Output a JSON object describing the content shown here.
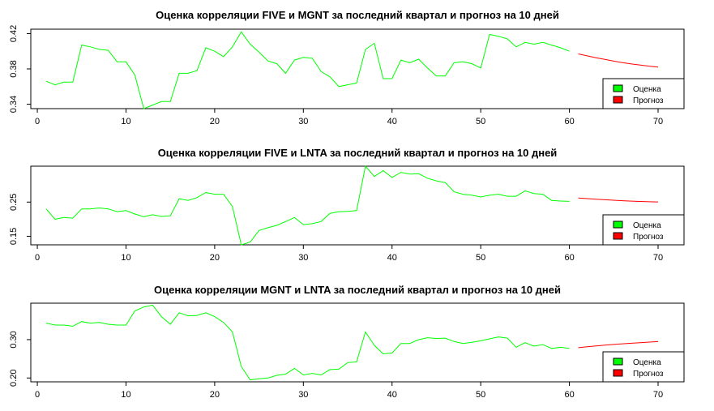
{
  "colors": {
    "estimate": "#00ff00",
    "forecast": "#ff0000",
    "axis": "#000000"
  },
  "legend": {
    "estimate_label": "Оценка",
    "forecast_label": "Прогноз",
    "placement": "bottom-right"
  },
  "chart_data": [
    {
      "type": "line",
      "title": "Оценка корреляции FIVE и MGNT за последний квартал и прогноз на 10 дней",
      "xlabel": "",
      "ylabel": "",
      "xlim": [
        1,
        70
      ],
      "ylim": [
        0.335,
        0.425
      ],
      "xticks": [
        0,
        10,
        20,
        30,
        40,
        50,
        60,
        70
      ],
      "yticks": [
        0.34,
        0.38,
        0.42
      ],
      "series": [
        {
          "name": "Оценка",
          "x_start": 1,
          "values": [
            0.366,
            0.362,
            0.365,
            0.365,
            0.407,
            0.405,
            0.402,
            0.401,
            0.388,
            0.388,
            0.373,
            0.335,
            0.339,
            0.343,
            0.343,
            0.375,
            0.375,
            0.378,
            0.404,
            0.4,
            0.394,
            0.405,
            0.422,
            0.408,
            0.399,
            0.389,
            0.386,
            0.375,
            0.39,
            0.393,
            0.392,
            0.377,
            0.371,
            0.36,
            0.362,
            0.364,
            0.402,
            0.409,
            0.369,
            0.369,
            0.39,
            0.387,
            0.391,
            0.381,
            0.372,
            0.372,
            0.387,
            0.388,
            0.386,
            0.381,
            0.419,
            0.417,
            0.414,
            0.405,
            0.41,
            0.408,
            0.41,
            0.407,
            0.404,
            0.4
          ]
        },
        {
          "name": "Прогноз",
          "x_start": 61,
          "values": [
            0.397,
            0.3948,
            0.3927,
            0.3907,
            0.3888,
            0.3871,
            0.3856,
            0.3843,
            0.3831,
            0.382
          ]
        }
      ]
    },
    {
      "type": "line",
      "title": "Оценка корреляции FIVE и LNTA за последний квартал и прогноз на 10 дней",
      "xlabel": "",
      "ylabel": "",
      "xlim": [
        1,
        70
      ],
      "ylim": [
        0.125,
        0.355
      ],
      "xticks": [
        0,
        10,
        20,
        30,
        40,
        50,
        60,
        70
      ],
      "yticks": [
        0.15,
        0.25
      ],
      "series": [
        {
          "name": "Оценка",
          "x_start": 1,
          "values": [
            0.23,
            0.2,
            0.205,
            0.203,
            0.23,
            0.23,
            0.233,
            0.23,
            0.222,
            0.225,
            0.215,
            0.207,
            0.213,
            0.208,
            0.21,
            0.26,
            0.255,
            0.263,
            0.278,
            0.273,
            0.273,
            0.237,
            0.125,
            0.133,
            0.167,
            0.175,
            0.182,
            0.193,
            0.205,
            0.184,
            0.187,
            0.193,
            0.217,
            0.222,
            0.223,
            0.225,
            0.355,
            0.325,
            0.342,
            0.322,
            0.337,
            0.332,
            0.333,
            0.32,
            0.312,
            0.307,
            0.28,
            0.273,
            0.27,
            0.265,
            0.27,
            0.273,
            0.267,
            0.267,
            0.283,
            0.275,
            0.273,
            0.255,
            0.253,
            0.252
          ]
        },
        {
          "name": "Прогноз",
          "x_start": 61,
          "values": [
            0.262,
            0.2602,
            0.2585,
            0.2568,
            0.2553,
            0.254,
            0.2528,
            0.2518,
            0.251,
            0.2505
          ]
        }
      ]
    },
    {
      "type": "line",
      "title": "Оценка корреляции MGNT и LNTA за последний квартал и прогноз на 10 дней",
      "xlabel": "",
      "ylabel": "",
      "xlim": [
        1,
        70
      ],
      "ylim": [
        0.19,
        0.395
      ],
      "xticks": [
        0,
        10,
        20,
        30,
        40,
        50,
        60,
        70
      ],
      "yticks": [
        0.2,
        0.3
      ],
      "series": [
        {
          "name": "Оценка",
          "x_start": 1,
          "values": [
            0.343,
            0.338,
            0.338,
            0.335,
            0.347,
            0.343,
            0.345,
            0.34,
            0.338,
            0.338,
            0.375,
            0.385,
            0.39,
            0.36,
            0.34,
            0.37,
            0.362,
            0.363,
            0.37,
            0.36,
            0.345,
            0.32,
            0.23,
            0.195,
            0.198,
            0.2,
            0.207,
            0.21,
            0.225,
            0.208,
            0.212,
            0.208,
            0.222,
            0.223,
            0.24,
            0.242,
            0.32,
            0.285,
            0.263,
            0.265,
            0.29,
            0.29,
            0.3,
            0.305,
            0.303,
            0.304,
            0.295,
            0.29,
            0.293,
            0.297,
            0.302,
            0.307,
            0.304,
            0.28,
            0.292,
            0.283,
            0.287,
            0.277,
            0.28,
            0.277
          ]
        },
        {
          "name": "Прогноз",
          "x_start": 61,
          "values": [
            0.279,
            0.2815,
            0.2837,
            0.2857,
            0.2875,
            0.2891,
            0.2906,
            0.2921,
            0.2935,
            0.2948
          ]
        }
      ]
    }
  ]
}
